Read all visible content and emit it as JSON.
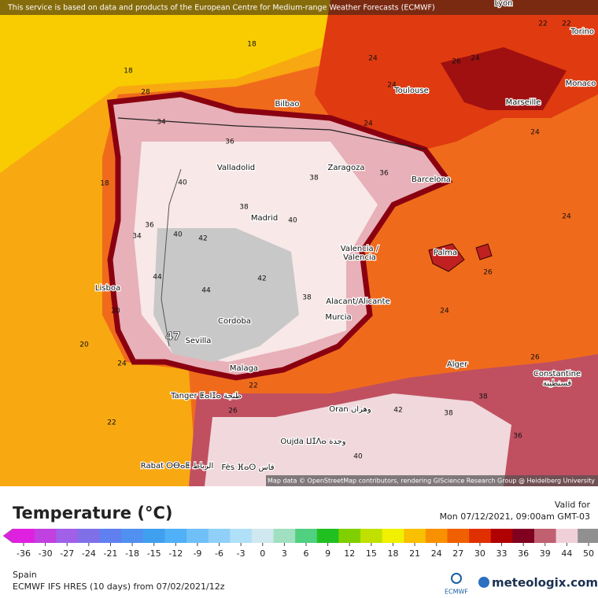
{
  "header": {
    "notice": "This service is based on data and products of the European Centre for Medium-range Weather Forecasts (ECMWF)"
  },
  "map": {
    "attribution": "Map data © OpenStreetMap contributors, rendering GIScience Research Group @ Heidelberg University",
    "max_label": "47",
    "cities": [
      "Lyon",
      "Torino",
      "Monaco",
      "Toulouse",
      "Marseille",
      "Bilbao",
      "Valladolid",
      "Zaragoza",
      "Barcelona",
      "Madrid",
      "Valencia /",
      "Valencia",
      "Palma",
      "Lisboa",
      "Alacant/Alicante",
      "Murcia",
      "Cordoba",
      "Sevilla",
      "Malaga",
      "Alger",
      "Constantine",
      "قسنطينة",
      "Tanger ⵟⴰⵏⵊⴰ طنجة",
      "Oran وهران",
      "Oujda ⵡⵊⴷⴰ وجدة",
      "Rabat ⵔⴱⴰⵟ الرباط",
      "Fès ⴼⴰⵙ فاس"
    ],
    "contour_labels": [
      18,
      18,
      18,
      20,
      22,
      22,
      24,
      26,
      24,
      22,
      22,
      24,
      26,
      24,
      24,
      26,
      24,
      28,
      34,
      36,
      36,
      38,
      40,
      42,
      42,
      44,
      44,
      40,
      38,
      36,
      34,
      38,
      40,
      42,
      38,
      40,
      38,
      36,
      24,
      20,
      24,
      26
    ]
  },
  "legend": {
    "title": "Temperature (°C)",
    "valid_label": "Valid for",
    "valid_time": "Mon 07/12/2021, 09:00am GMT-03",
    "ticks": [
      -36,
      -30,
      -27,
      -24,
      -21,
      -18,
      -15,
      -12,
      -9,
      -6,
      -3,
      0,
      3,
      6,
      9,
      12,
      15,
      18,
      21,
      24,
      27,
      30,
      33,
      36,
      39,
      44,
      50
    ],
    "colors": [
      "#e020e0",
      "#c040e0",
      "#a060e8",
      "#8070e8",
      "#6080f0",
      "#5090f0",
      "#40a0f0",
      "#50b0f8",
      "#70c0f8",
      "#90d0f8",
      "#b0e0f8",
      "#d0e8f0",
      "#a0e0c0",
      "#50d080",
      "#20c020",
      "#80d000",
      "#c0e000",
      "#f0f000",
      "#f8c000",
      "#f89000",
      "#f06000",
      "#e03000",
      "#b00000",
      "#800020",
      "#c06070",
      "#f0d0d8",
      "#909090"
    ]
  },
  "footer": {
    "region": "Spain",
    "model": "ECMWF IFS HRES (10 days) from 07/02/2021/12z",
    "ecmwf_logo": "ECMWF",
    "brand": "meteologix.com"
  }
}
